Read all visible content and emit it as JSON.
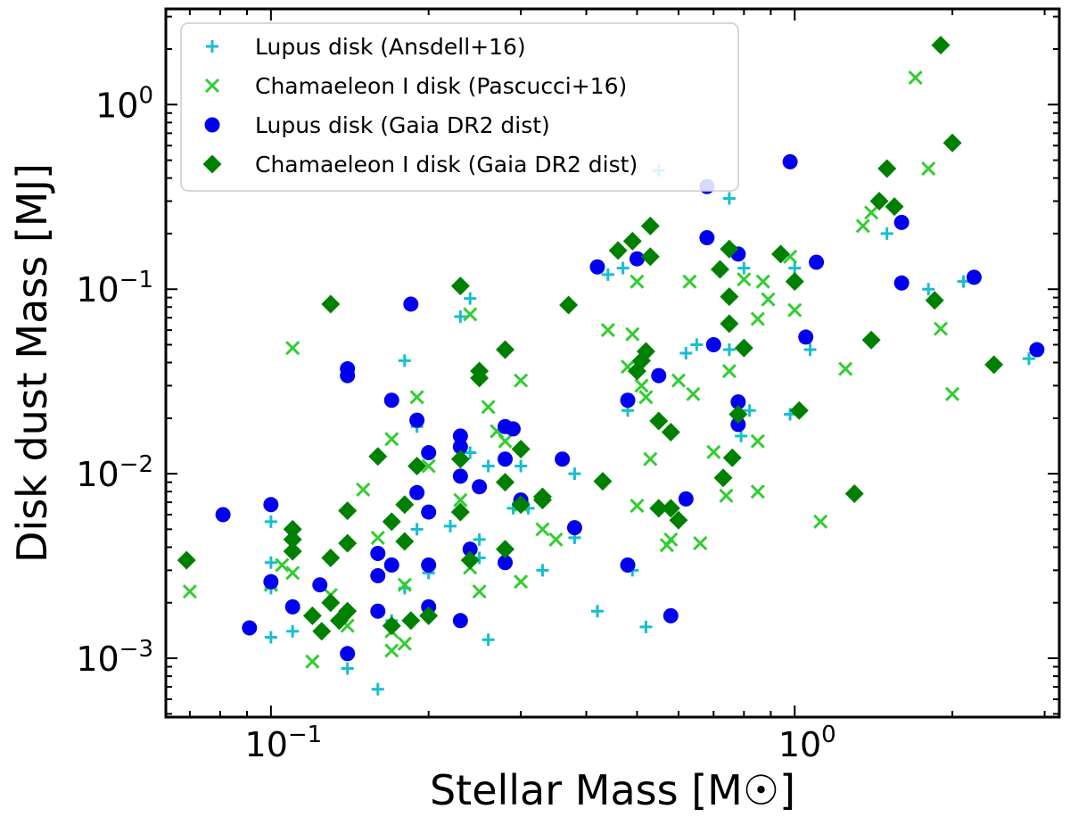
{
  "chart_data": {
    "type": "scatter",
    "xscale": "log",
    "yscale": "log",
    "xlim": [
      0.063,
      3.2
    ],
    "ylim": [
      0.00048,
      3.3
    ],
    "grid": false,
    "legend_position": "top-left",
    "xlabel": "Stellar Mass [M☉]",
    "ylabel": "Disk dust Mass [MJ]",
    "xticks": [
      {
        "value": 0.1,
        "base": "10",
        "exp": "−1"
      },
      {
        "value": 1,
        "base": "10",
        "exp": "0"
      }
    ],
    "yticks": [
      {
        "value": 0.001,
        "base": "10",
        "exp": "−3"
      },
      {
        "value": 0.01,
        "base": "10",
        "exp": "−2"
      },
      {
        "value": 0.1,
        "base": "10",
        "exp": "−1"
      },
      {
        "value": 1,
        "base": "10",
        "exp": "0"
      }
    ],
    "series": [
      {
        "name": "Lupus disk (Ansdell+16)",
        "marker": "plus",
        "color": "#17becf",
        "points": [
          [
            0.1,
            0.0055
          ],
          [
            0.1,
            0.0033
          ],
          [
            0.1,
            0.0024
          ],
          [
            0.1,
            0.0013
          ],
          [
            0.11,
            0.0014
          ],
          [
            0.14,
            0.00088
          ],
          [
            0.16,
            0.00068
          ],
          [
            0.17,
            0.0016
          ],
          [
            0.18,
            0.041
          ],
          [
            0.18,
            0.0024
          ],
          [
            0.19,
            0.018
          ],
          [
            0.19,
            0.005
          ],
          [
            0.2,
            0.0029
          ],
          [
            0.22,
            0.0052
          ],
          [
            0.23,
            0.071
          ],
          [
            0.24,
            0.089
          ],
          [
            0.24,
            0.013
          ],
          [
            0.25,
            0.0035
          ],
          [
            0.25,
            0.0044
          ],
          [
            0.26,
            0.011
          ],
          [
            0.26,
            0.00126
          ],
          [
            0.29,
            0.0065
          ],
          [
            0.3,
            0.011
          ],
          [
            0.31,
            0.0065
          ],
          [
            0.33,
            0.003
          ],
          [
            0.38,
            0.0045
          ],
          [
            0.38,
            0.01
          ],
          [
            0.42,
            0.0018
          ],
          [
            0.44,
            0.12
          ],
          [
            0.47,
            0.13
          ],
          [
            0.48,
            0.022
          ],
          [
            0.49,
            0.003
          ],
          [
            0.5,
            0.04
          ],
          [
            0.52,
            0.00148
          ],
          [
            0.55,
            0.0066
          ],
          [
            0.55,
            0.44
          ],
          [
            0.62,
            0.045
          ],
          [
            0.65,
            0.05
          ],
          [
            0.75,
            0.31
          ],
          [
            0.75,
            0.17
          ],
          [
            0.8,
            0.13
          ],
          [
            0.75,
            0.047
          ],
          [
            0.79,
            0.016
          ],
          [
            0.82,
            0.022
          ],
          [
            0.98,
            0.021
          ],
          [
            1.0,
            0.13
          ],
          [
            1.07,
            0.047
          ],
          [
            1.5,
            0.2
          ],
          [
            1.8,
            0.1
          ],
          [
            2.1,
            0.11
          ],
          [
            2.8,
            0.042
          ]
        ]
      },
      {
        "name": "Chamaeleon I disk (Pascucci+16)",
        "marker": "x",
        "color": "#32cd32",
        "points": [
          [
            0.07,
            0.0023
          ],
          [
            0.1,
            0.0025
          ],
          [
            0.105,
            0.0032
          ],
          [
            0.11,
            0.0029
          ],
          [
            0.11,
            0.048
          ],
          [
            0.12,
            0.00096
          ],
          [
            0.13,
            0.0022
          ],
          [
            0.14,
            0.0015
          ],
          [
            0.15,
            0.0082
          ],
          [
            0.16,
            0.0045
          ],
          [
            0.17,
            0.0011
          ],
          [
            0.17,
            0.0014
          ],
          [
            0.17,
            0.0154
          ],
          [
            0.18,
            0.0012
          ],
          [
            0.18,
            0.0025
          ],
          [
            0.19,
            0.026
          ],
          [
            0.2,
            0.011
          ],
          [
            0.23,
            0.0072
          ],
          [
            0.24,
            0.073
          ],
          [
            0.24,
            0.0031
          ],
          [
            0.25,
            0.0023
          ],
          [
            0.26,
            0.023
          ],
          [
            0.27,
            0.017
          ],
          [
            0.28,
            0.015
          ],
          [
            0.3,
            0.0026
          ],
          [
            0.3,
            0.032
          ],
          [
            0.3,
            0.0068
          ],
          [
            0.33,
            0.005
          ],
          [
            0.35,
            0.0044
          ],
          [
            0.44,
            0.06
          ],
          [
            0.48,
            0.038
          ],
          [
            0.49,
            0.057
          ],
          [
            0.5,
            0.11
          ],
          [
            0.5,
            0.0067
          ],
          [
            0.51,
            0.03
          ],
          [
            0.52,
            0.026
          ],
          [
            0.53,
            0.012
          ],
          [
            0.57,
            0.0041
          ],
          [
            0.58,
            0.0044
          ],
          [
            0.6,
            0.032
          ],
          [
            0.63,
            0.11
          ],
          [
            0.64,
            0.027
          ],
          [
            0.66,
            0.0042
          ],
          [
            0.7,
            0.0131
          ],
          [
            0.74,
            0.0076
          ],
          [
            0.75,
            0.036
          ],
          [
            0.8,
            0.113
          ],
          [
            0.85,
            0.008
          ],
          [
            0.85,
            0.015
          ],
          [
            0.85,
            0.069
          ],
          [
            0.87,
            0.11
          ],
          [
            0.89,
            0.088
          ],
          [
            0.98,
            0.15
          ],
          [
            1.0,
            0.077
          ],
          [
            1.12,
            0.0055
          ],
          [
            1.25,
            0.037
          ],
          [
            1.35,
            0.22
          ],
          [
            1.4,
            0.26
          ],
          [
            1.7,
            1.4
          ],
          [
            1.8,
            0.45
          ],
          [
            1.9,
            0.061
          ],
          [
            2.0,
            0.027
          ]
        ]
      },
      {
        "name": "Lupus disk (Gaia DR2 dist)",
        "marker": "circle",
        "color": "#0000ee",
        "points": [
          [
            0.081,
            0.006
          ],
          [
            0.091,
            0.00146
          ],
          [
            0.1,
            0.0068
          ],
          [
            0.1,
            0.0026
          ],
          [
            0.11,
            0.0019
          ],
          [
            0.124,
            0.0025
          ],
          [
            0.14,
            0.037
          ],
          [
            0.14,
            0.034
          ],
          [
            0.14,
            0.00106
          ],
          [
            0.16,
            0.0037
          ],
          [
            0.16,
            0.0028
          ],
          [
            0.16,
            0.0018
          ],
          [
            0.17,
            0.025
          ],
          [
            0.17,
            0.0032
          ],
          [
            0.185,
            0.083
          ],
          [
            0.19,
            0.0195
          ],
          [
            0.19,
            0.0079
          ],
          [
            0.2,
            0.013
          ],
          [
            0.2,
            0.0062
          ],
          [
            0.2,
            0.0032
          ],
          [
            0.2,
            0.0019
          ],
          [
            0.23,
            0.016
          ],
          [
            0.23,
            0.014
          ],
          [
            0.23,
            0.0097
          ],
          [
            0.23,
            0.0016
          ],
          [
            0.24,
            0.0039
          ],
          [
            0.25,
            0.0085
          ],
          [
            0.28,
            0.012
          ],
          [
            0.28,
            0.0033
          ],
          [
            0.28,
            0.018
          ],
          [
            0.29,
            0.0175
          ],
          [
            0.3,
            0.0072
          ],
          [
            0.36,
            0.012
          ],
          [
            0.38,
            0.0051
          ],
          [
            0.42,
            0.132
          ],
          [
            0.48,
            0.025
          ],
          [
            0.48,
            0.0032
          ],
          [
            0.5,
            0.146
          ],
          [
            0.55,
            0.034
          ],
          [
            0.58,
            0.0017
          ],
          [
            0.62,
            0.0073
          ],
          [
            0.68,
            0.19
          ],
          [
            0.68,
            0.36
          ],
          [
            0.7,
            0.05
          ],
          [
            0.78,
            0.155
          ],
          [
            0.78,
            0.0245
          ],
          [
            0.78,
            0.0185
          ],
          [
            0.98,
            0.49
          ],
          [
            1.05,
            0.055
          ],
          [
            1.1,
            0.14
          ],
          [
            1.6,
            0.23
          ],
          [
            1.6,
            0.108
          ],
          [
            2.2,
            0.116
          ],
          [
            2.9,
            0.047
          ]
        ]
      },
      {
        "name": "Chamaeleon I disk (Gaia DR2 dist)",
        "marker": "diamond",
        "color": "#008000",
        "points": [
          [
            0.069,
            0.0034
          ],
          [
            0.11,
            0.005
          ],
          [
            0.11,
            0.0044
          ],
          [
            0.11,
            0.0038
          ],
          [
            0.12,
            0.0017
          ],
          [
            0.125,
            0.0014
          ],
          [
            0.13,
            0.0035
          ],
          [
            0.13,
            0.002
          ],
          [
            0.13,
            0.083
          ],
          [
            0.135,
            0.0016
          ],
          [
            0.14,
            0.0063
          ],
          [
            0.14,
            0.0042
          ],
          [
            0.14,
            0.0018
          ],
          [
            0.16,
            0.0124
          ],
          [
            0.17,
            0.0055
          ],
          [
            0.17,
            0.0015
          ],
          [
            0.18,
            0.0068
          ],
          [
            0.18,
            0.0043
          ],
          [
            0.185,
            0.0016
          ],
          [
            0.19,
            0.011
          ],
          [
            0.2,
            0.0017
          ],
          [
            0.23,
            0.104
          ],
          [
            0.23,
            0.012
          ],
          [
            0.23,
            0.0062
          ],
          [
            0.24,
            0.0034
          ],
          [
            0.25,
            0.036
          ],
          [
            0.25,
            0.033
          ],
          [
            0.28,
            0.047
          ],
          [
            0.28,
            0.009
          ],
          [
            0.28,
            0.0039
          ],
          [
            0.3,
            0.0068
          ],
          [
            0.3,
            0.0136
          ],
          [
            0.33,
            0.0075
          ],
          [
            0.33,
            0.0072
          ],
          [
            0.37,
            0.082
          ],
          [
            0.43,
            0.0091
          ],
          [
            0.46,
            0.162
          ],
          [
            0.49,
            0.182
          ],
          [
            0.5,
            0.036
          ],
          [
            0.51,
            0.041
          ],
          [
            0.52,
            0.046
          ],
          [
            0.53,
            0.22
          ],
          [
            0.53,
            0.15
          ],
          [
            0.55,
            0.0193
          ],
          [
            0.55,
            0.0065
          ],
          [
            0.58,
            0.0168
          ],
          [
            0.58,
            0.0065
          ],
          [
            0.6,
            0.0056
          ],
          [
            0.72,
            0.128
          ],
          [
            0.73,
            0.0095
          ],
          [
            0.75,
            0.165
          ],
          [
            0.75,
            0.091
          ],
          [
            0.75,
            0.065
          ],
          [
            0.76,
            0.0122
          ],
          [
            0.78,
            0.021
          ],
          [
            0.8,
            0.048
          ],
          [
            0.94,
            0.155
          ],
          [
            1.0,
            0.11
          ],
          [
            1.02,
            0.022
          ],
          [
            1.3,
            0.0078
          ],
          [
            1.4,
            0.053
          ],
          [
            1.45,
            0.3
          ],
          [
            1.5,
            0.45
          ],
          [
            1.55,
            0.28
          ],
          [
            1.85,
            0.087
          ],
          [
            1.9,
            2.1
          ],
          [
            2.0,
            0.62
          ],
          [
            2.4,
            0.039
          ]
        ]
      }
    ]
  }
}
